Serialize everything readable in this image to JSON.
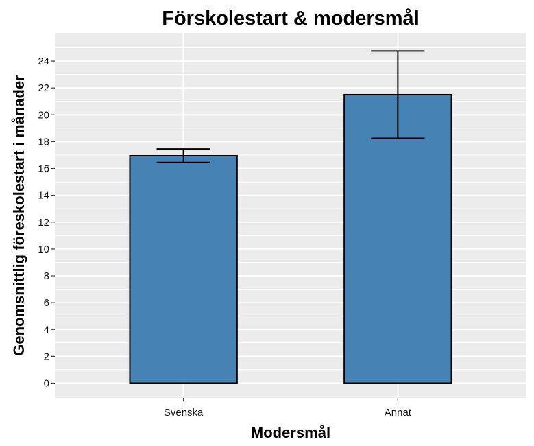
{
  "chart_data": {
    "type": "bar",
    "title": "Förskolestart & modersmål",
    "xlabel": "Modersmål",
    "ylabel": "Genomsnittlig föreskolestart i månader",
    "categories": [
      "Svenska",
      "Annat"
    ],
    "values": [
      16.95,
      21.5
    ],
    "error_low": [
      16.45,
      18.25
    ],
    "error_high": [
      17.45,
      24.75
    ],
    "ylim": [
      -1.1,
      26.1
    ],
    "yticks": [
      0,
      2,
      4,
      6,
      8,
      10,
      12,
      14,
      16,
      18,
      20,
      22,
      24
    ],
    "grid": true,
    "bar_color": "#4682B4",
    "panel_background": "#EBEBEB",
    "gridline_color": "#FFFFFF"
  }
}
